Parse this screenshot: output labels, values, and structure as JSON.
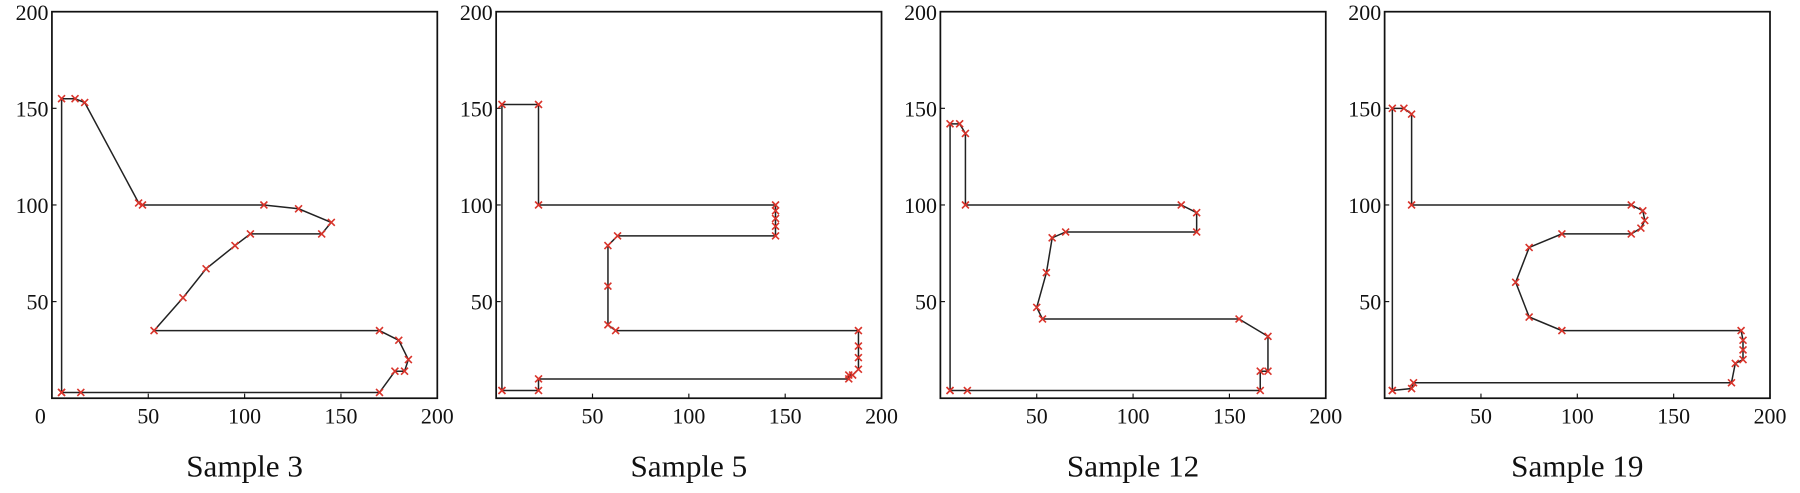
{
  "chart_data": [
    {
      "type": "line",
      "title": "Sample 3",
      "color": "#222222",
      "marker_color": "#d9342b",
      "x": [
        5,
        5,
        12,
        17,
        45,
        47,
        110,
        128,
        145,
        140,
        103,
        95,
        80,
        68,
        53,
        170,
        180,
        185,
        183,
        178,
        170,
        15,
        5
      ],
      "values": [
        3,
        155,
        155,
        153,
        101,
        100,
        100,
        98,
        91,
        85,
        85,
        79,
        67,
        52,
        35,
        35,
        30,
        20,
        14,
        14,
        3,
        3,
        3
      ],
      "xlim": [
        0,
        200
      ],
      "ylim": [
        0,
        200
      ],
      "xticks": [
        0,
        50,
        100,
        150,
        200
      ],
      "yticks": [
        50,
        100,
        150,
        200
      ]
    },
    {
      "type": "line",
      "title": "Sample 5",
      "color": "#222222",
      "marker_color": "#d9342b",
      "x": [
        3,
        3,
        22,
        22,
        145,
        145,
        145,
        145,
        145,
        63,
        58,
        58,
        58,
        62,
        188,
        188,
        188,
        188,
        185,
        183,
        183,
        22,
        22,
        3
      ],
      "values": [
        4,
        152,
        152,
        100,
        100,
        97,
        93,
        89,
        84,
        84,
        79,
        58,
        38,
        35,
        35,
        27,
        21,
        15,
        12,
        12,
        10,
        10,
        4,
        4
      ],
      "xlim": [
        0,
        200
      ],
      "ylim": [
        0,
        200
      ],
      "xticks": [
        50,
        100,
        150,
        200
      ],
      "yticks": [
        50,
        100,
        150,
        200
      ]
    },
    {
      "type": "line",
      "title": "Sample 12",
      "color": "#222222",
      "marker_color": "#d9342b",
      "x": [
        5,
        5,
        10,
        13,
        13,
        125,
        133,
        133,
        65,
        58,
        55,
        50,
        53,
        155,
        170,
        170,
        166,
        166,
        14,
        5
      ],
      "values": [
        4,
        142,
        142,
        137,
        100,
        100,
        96,
        86,
        86,
        83,
        65,
        47,
        41,
        41,
        32,
        14,
        14,
        4,
        4,
        4
      ],
      "xlim": [
        0,
        200
      ],
      "ylim": [
        0,
        200
      ],
      "xticks": [
        50,
        100,
        150,
        200
      ],
      "yticks": [
        50,
        100,
        150,
        200
      ]
    },
    {
      "type": "line",
      "title": "Sample 19",
      "color": "#222222",
      "marker_color": "#d9342b",
      "x": [
        4,
        4,
        10,
        14,
        14,
        128,
        134,
        135,
        133,
        128,
        92,
        75,
        68,
        75,
        92,
        185,
        186,
        186,
        186,
        182,
        180,
        15,
        14,
        4
      ],
      "values": [
        4,
        150,
        150,
        147,
        100,
        100,
        97,
        92,
        88,
        85,
        85,
        78,
        60,
        42,
        35,
        35,
        30,
        25,
        20,
        18,
        8,
        8,
        5,
        4
      ],
      "xlim": [
        0,
        200
      ],
      "ylim": [
        0,
        200
      ],
      "xticks": [
        50,
        100,
        150,
        200
      ],
      "yticks": [
        50,
        100,
        150,
        200
      ]
    }
  ]
}
